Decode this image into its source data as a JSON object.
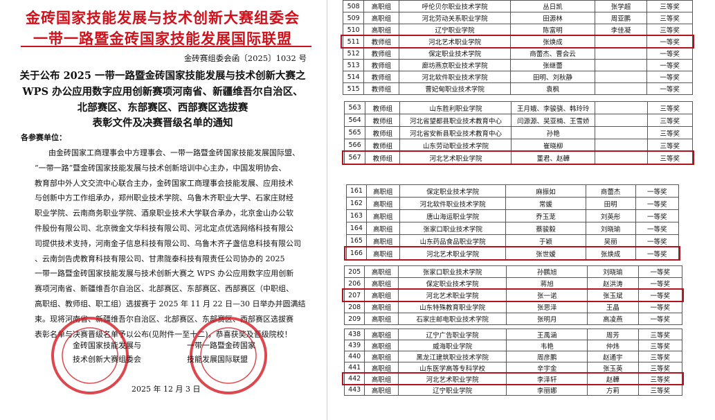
{
  "document": {
    "org_lines": [
      "金砖国家技能发展与技术创新大赛组委会",
      "一带一路暨金砖国家技能发展国际联盟"
    ],
    "doc_number": "金砖赛组委会函〔2025〕1032 号",
    "heading": [
      "关于公布 2025 一带一路暨金砖国家技能发展与技术创新大赛之",
      "WPS 办公应用数字应用创新赛项河南省、新疆维吾尔自治区、",
      "北部赛区、东部赛区、西部赛区选拔赛",
      "表彰文件及决赛晋级名单的通知"
    ],
    "salutation": "各参赛单位：",
    "body": [
      "由金砖国家工商理事会中方理事会、一带一路暨金砖国家技能发展国际盟、",
      "“一带一路”暨金砖国家技能发展与技术创新培训中心主办，中国发明协会、",
      "教育部中外人文交流中心联合主办，金砖国家工商理事会技能发展、应用技术",
      "与创新中方工作组承办，郑州职业技术学院、乌鲁木齐职业大学、石家庄财经",
      "职业学院、云南商务职业学院、酒泉职业技术大学联合承办，北京金山办公软",
      "件股份有限公司、北京微金文华科技有限公司、河北定点优选网络科技有限公",
      "司提供技术支持，河南金子信息科技有限公司、乌鲁木齐子盏信息科技有限公司",
      "、云南剑告虎教育科技有限公司、甘肃陇泰科技有限责任公司协办的 2025",
      "一带一路暨金砖国家技能发展与技术创新大赛之 WPS 办公应用数字应用创新",
      "赛项河南省、新疆维吾尔自治区、北部赛区、东部赛区、西部赛区（中职组、",
      "高职组、教师组、职工组）选拔赛于 2025 年 11 月 22 日—30 日举办并圆满结",
      "束。现将河南省、新疆维吾尔自治区、北部赛区、东部赛区、西部赛区选拔赛",
      "表彰名单与决赛晋级名单予以公布(见附件一至十二)，恭喜获奖及晋级院校！"
    ],
    "signatures": [
      [
        "金砖国家技能发展与",
        "技术创新大赛组委会"
      ],
      [
        "一带一路暨金砖国家",
        "技能发展国际联盟"
      ]
    ],
    "date": "2025 年 12 月 3 日"
  },
  "tables": [
    {
      "rows": [
        {
          "no": "508",
          "group": "高职组",
          "school": "呼伦贝尔职业技术学院",
          "names": "丛日凯",
          "advisor": "张学超",
          "award": "三等奖"
        },
        {
          "no": "509",
          "group": "高职组",
          "school": "河北劳动关系职业学院",
          "names": "田源林",
          "advisor": "周亚鹏",
          "award": "三等奖"
        },
        {
          "no": "510",
          "group": "高职组",
          "school": "辽宁职业学院",
          "names": "陈富明",
          "advisor": "李佳凝",
          "award": "三等奖"
        },
        {
          "no": "511",
          "group": "教师组",
          "school": "河北艺术职业学院",
          "names": "张焕成",
          "award": "一等奖"
        },
        {
          "no": "512",
          "group": "教师组",
          "school": "保定职业技术学院",
          "names": "商蕾杰、曹会云",
          "award": "一等奖"
        },
        {
          "no": "513",
          "group": "教师组",
          "school": "廊坊燕京职业技术学院",
          "names": "张继蕾",
          "award": "一等奖"
        },
        {
          "no": "514",
          "group": "教师组",
          "school": "河北软件职业技术学院",
          "names": "田明、刘秋静",
          "award": "一等奖"
        },
        {
          "no": "515",
          "group": "教师组",
          "school": "曹妃甸职业技术学院",
          "names": "袁枫",
          "award": "一等奖"
        }
      ]
    },
    {
      "rows": [
        {
          "no": "563",
          "group": "教师组",
          "school": "山东胜利职业学院",
          "names": "王月娥、李骏骁、韩玲玲",
          "award": "三等奖"
        },
        {
          "no": "564",
          "group": "教师组",
          "school": "河北省望都县职业技术教育中心",
          "names": "闫源源、吴亚楠、王雪娇",
          "award": "三等奖"
        },
        {
          "no": "565",
          "group": "教师组",
          "school": "河北省安新县职业技术教育中心",
          "names": "孙艳",
          "award": "三等奖"
        },
        {
          "no": "566",
          "group": "教师组",
          "school": "山东劳动职业技术学院",
          "names": "崔晓柳",
          "award": "三等奖"
        },
        {
          "no": "567",
          "group": "教师组",
          "school": "河北艺术职业学院",
          "names": "董君、赵韡",
          "award": "三等奖"
        }
      ]
    },
    {
      "rows": [
        {
          "no": "161",
          "group": "高职组",
          "school": "保定职业技术学院",
          "names": "麻振如",
          "advisor": "商蕾杰",
          "award": "一等奖"
        },
        {
          "no": "162",
          "group": "高职组",
          "school": "河北软件职业技术学院",
          "names": "常媛",
          "advisor": "田明",
          "award": "一等奖"
        },
        {
          "no": "163",
          "group": "高职组",
          "school": "唐山海运职业学院",
          "names": "乔玉茏",
          "advisor": "刘英彤",
          "award": "一等奖"
        },
        {
          "no": "164",
          "group": "高职组",
          "school": "张家口职业技术学院",
          "names": "蔡骏毅",
          "advisor": "刘晓瑜",
          "award": "一等奖"
        },
        {
          "no": "165",
          "group": "高职组",
          "school": "山东药品食品职业学院",
          "names": "于颖",
          "advisor": "吴丽",
          "award": "一等奖"
        },
        {
          "no": "166",
          "group": "高职组",
          "school": "河北艺术职业学院",
          "names": "张世嫒",
          "advisor": "张焕成",
          "award": "一等奖"
        }
      ]
    },
    {
      "rows": [
        {
          "no": "205",
          "group": "高职组",
          "school": "张家口职业技术学院",
          "names": "孙鹏旭",
          "advisor": "刘晓瑜",
          "award": "一等奖"
        },
        {
          "no": "206",
          "group": "高职组",
          "school": "保定职业技术学院",
          "names": "蒋旭",
          "advisor": "赵洪涛",
          "award": "一等奖"
        },
        {
          "no": "207",
          "group": "高职组",
          "school": "河北艺术职业学院",
          "names": "张一诺",
          "advisor": "张玉斌",
          "award": "一等奖"
        },
        {
          "no": "208",
          "group": "高职组",
          "school": "山东特殊教育职业学院",
          "names": "张思泽",
          "advisor": "王晶",
          "award": "一等奖"
        },
        {
          "no": "209",
          "group": "高职组",
          "school": "石家庄邮电职业技术学院",
          "names": "张明月",
          "advisor": "高凌燕",
          "award": "一等奖"
        }
      ]
    },
    {
      "rows": [
        {
          "no": "438",
          "group": "高职组",
          "school": "辽宁广告职业学院",
          "names": "王禹涵",
          "advisor": "周芳",
          "award": "三等奖"
        },
        {
          "no": "439",
          "group": "高职组",
          "school": "威海职业学院",
          "names": "韦艳",
          "advisor": "仲炜",
          "award": "三等奖"
        },
        {
          "no": "440",
          "group": "高职组",
          "school": "黑龙江建筑职业技术学院",
          "names": "周彦鹏",
          "advisor": "赵通宇",
          "award": "三等奖"
        },
        {
          "no": "441",
          "group": "高职组",
          "school": "山东医学高等专科学校",
          "names": "辛宇金",
          "advisor": "张玉英",
          "award": "三等奖"
        },
        {
          "no": "442",
          "group": "高职组",
          "school": "河北艺术职业学院",
          "names": "李泽轩",
          "advisor": "赵韡",
          "award": "三等奖"
        },
        {
          "no": "443",
          "group": "高职组",
          "school": "辽宁职业学院",
          "names": "李丽娜",
          "advisor": "方莉",
          "award": "三等奖"
        }
      ]
    }
  ]
}
